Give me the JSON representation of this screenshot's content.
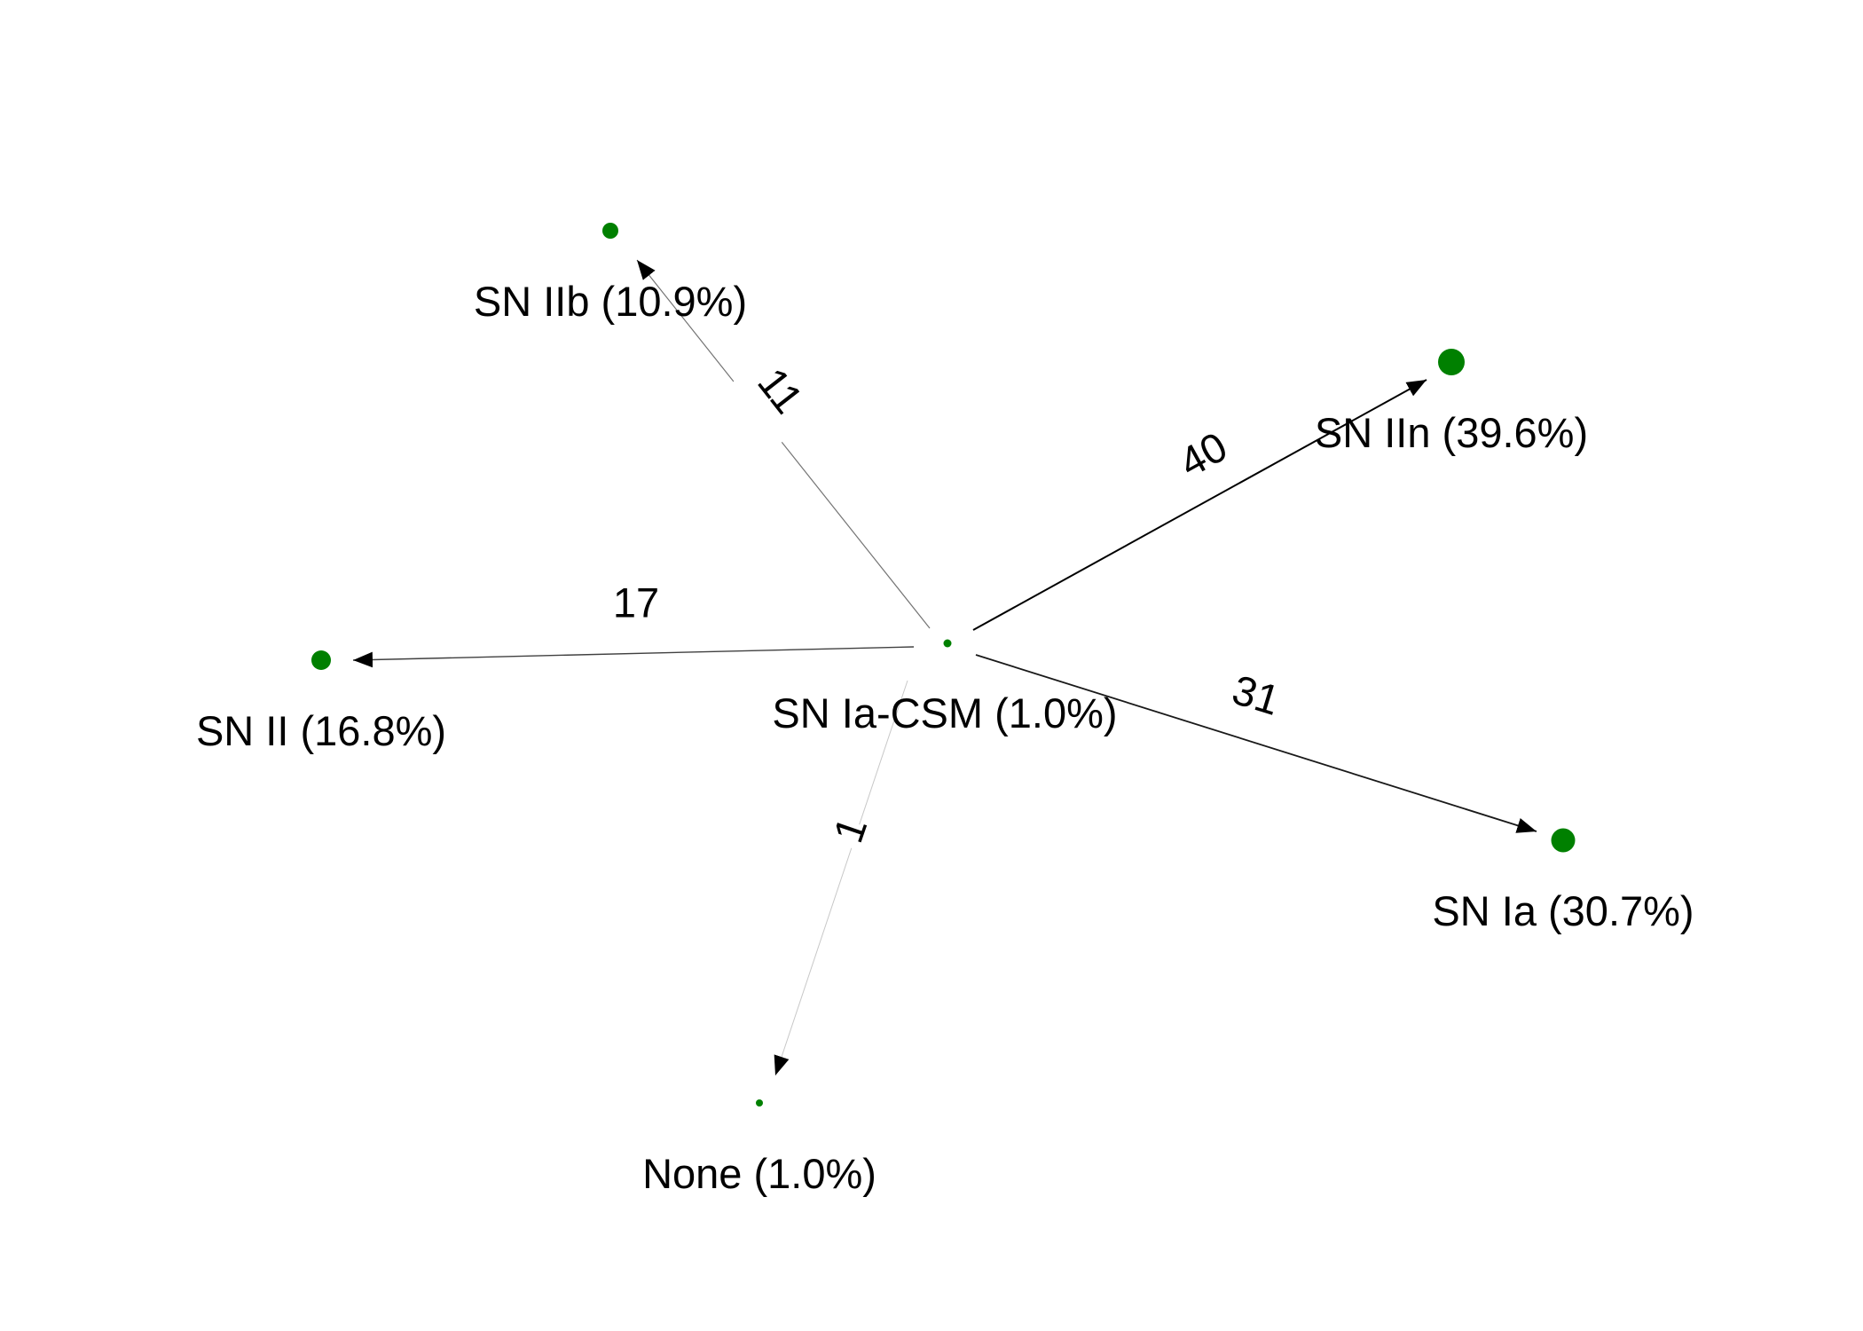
{
  "diagram": {
    "node_color": "#008000",
    "edge_color": "#000000",
    "nodes": [
      {
        "id": "ia_csm",
        "label": "SN Ia-CSM (1.0%)"
      },
      {
        "id": "iib",
        "label": "SN IIb (10.9%)"
      },
      {
        "id": "iin",
        "label": "SN IIn (39.6%)"
      },
      {
        "id": "ii",
        "label": "SN II (16.8%)"
      },
      {
        "id": "ia",
        "label": "SN Ia (30.7%)"
      },
      {
        "id": "none",
        "label": "None (1.0%)"
      }
    ],
    "edges": [
      {
        "source": "ia_csm",
        "target": "iib",
        "label": "11"
      },
      {
        "source": "ia_csm",
        "target": "iin",
        "label": "40"
      },
      {
        "source": "ia_csm",
        "target": "ii",
        "label": "17"
      },
      {
        "source": "ia_csm",
        "target": "ia",
        "label": "31"
      },
      {
        "source": "ia_csm",
        "target": "none",
        "label": "1"
      }
    ]
  }
}
